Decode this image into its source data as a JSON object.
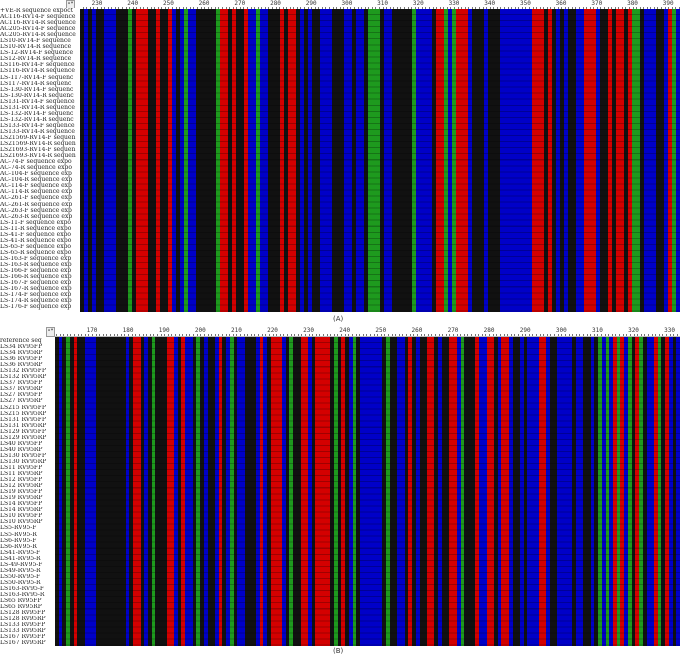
{
  "colors": {
    "A": "#1e9a1e",
    "C": "#0000c8",
    "G": "#111111",
    "T": "#d40000"
  },
  "panels": [
    {
      "caption": "(A)",
      "ticks": [
        "230",
        "240",
        "250",
        "260",
        "270",
        "280",
        "290",
        "300",
        "310",
        "320",
        "330",
        "340",
        "350",
        "360",
        "370",
        "380",
        "390"
      ],
      "column_pattern": "GCGCGGCCCGGGAGTTTGGTGGTCGCACCGGGGGATTGTGGTCCACCGGGTGTTGCGCGGCCCGGGCCGCCGAAAGCCGGGGGACCCCGTTACATTTCGGGCGGGCCCCCCCCTTTGTGCGCGGCCTTTCGGTGTTGTAAGCCCGGCTAC",
      "rows": [
        "+VE-R sequence expoct",
        "AC116-RV14-F sequence",
        "AC116-RV14-R sequence",
        "AC205-RV14-F sequence",
        "AC205-RV14-R sequence",
        "LS10-RV14-F sequence",
        "LS10-RV14-R sequence",
        "LS-12-RV14-F sequence",
        "LS12-RV14-R sequence",
        "LS116-RV14-F sequence",
        "LS116-RV14-R sequence",
        "LS-117-RV14-F sequenc",
        "LS117-RV14-R sequenc",
        "LS-130-RV14-F sequenc",
        "LS-130-RV14-R sequenc",
        "LS131-RV14-F sequence",
        "LS131-RV14-R sequence",
        "LS-132-RV14-F sequenc",
        "LS-132-RV14-R sequenc",
        "LS133-RV14-F sequence",
        "LS133-RV14-R sequence",
        "LS21569-RV14-F sequen",
        "LS21569-RV14-R sequen",
        "LS21693-RV14-F sequen",
        "LS21693-RV14-R sequen",
        "AC-74-F sequence expo",
        "AC-74-R sequence expo",
        "AC-104-F sequence exp",
        "AC-104-R sequence exp",
        "AC-114-F sequence exp",
        "AC-114-R sequence exp",
        "AC-261-F sequence exp",
        "AC-261-R sequence exp",
        "AC-263-F sequence exp",
        "AC-263-R sequence exp",
        "LS-11-F sequence expo",
        "LS-11-R sequence expo",
        "LS-41-F sequence expo",
        "LS-41-R sequence expo",
        "LS-65-F sequence expo",
        "LS-65-R sequence expo",
        "LS-163-F sequence exp",
        "LS-163-R sequence exp",
        "LS-166-F sequence exp",
        "LS-166-R sequence exp",
        "LS-167-F sequence exp",
        "LS-167-R sequence exp",
        "LS-174-F sequence exp",
        "LS-174-R sequence exp",
        "LS-176-F sequence exp"
      ]
    },
    {
      "caption": "(B)",
      "ticks": [
        "170",
        "180",
        "190",
        "200",
        "210",
        "220",
        "230",
        "240",
        "250",
        "260",
        "270",
        "280",
        "290",
        "300",
        "310",
        "320",
        "330"
      ],
      "column_pattern": "GCGAGTGGCCCGGGGGGGGCGTTGCGAGGGTTCGTCCGAGCGGCTGCAGCCGGGCTCGTTTCGAGGTTCGTTTTGAGTGCAGCCCCCCGAGGCCGTGCGGTTGCGGTTCAGGGTCCTTGCTTCGGCGCCCTTCGGCCCCGCCGGCGACACTATCAGTAGCCTAGTCGC",
      "rows": [
        "reference seq",
        "LS34 RV95FP",
        "LS34 RV95RP",
        "LS36 RV95FP",
        "LS36 RV95RP",
        "LS132 RV95FP",
        "LS132 RV95RP",
        "LS37 RV95FP",
        "LS37 RV95RP",
        "LS27 RV95FP",
        "LS27 RV95RP",
        "LS215 RV95FP",
        "LS215 RV95RP",
        "LS131 RV95FP",
        "LS131 RV95RP",
        "LS129 RV95FP",
        "LS129 RV95RP",
        "LS40 RV95FP",
        "LS40 RV95RP",
        "LS130 RV95FP",
        "LS130 RV95RP",
        "LS11 RV95FP",
        "LS11 RV95RP",
        "LS12 RV95FP",
        "LS12 RV95RP",
        "LS19 RV95FP",
        "LS19 RV95RP",
        "LS14 RV95FP",
        "LS14 RV95RP",
        "LS10 RV95FP",
        "LS10 RV95RP",
        "LS5-RV95-F",
        "LS5-RV95-R",
        "LS6-RV95-F",
        "LS6-RV95-R",
        "LS41-RV95-F",
        "LS41-RV95-R",
        "LS-49-RV95-F",
        "LS49-RV95-R",
        "LS50-RV95-F",
        "LS50-RV95-R",
        "LS163-RV95-F",
        "LS163-RV95-R",
        "LS65 Rv95FP",
        "LS65 Rv95RP",
        "LS128 Rv95FP",
        "LS128 Rv95RP",
        "LS133 Rv95FP",
        "LS133 Rv95RP",
        "LS167 Rv95FP",
        "LS167 Rv95RP"
      ]
    }
  ]
}
